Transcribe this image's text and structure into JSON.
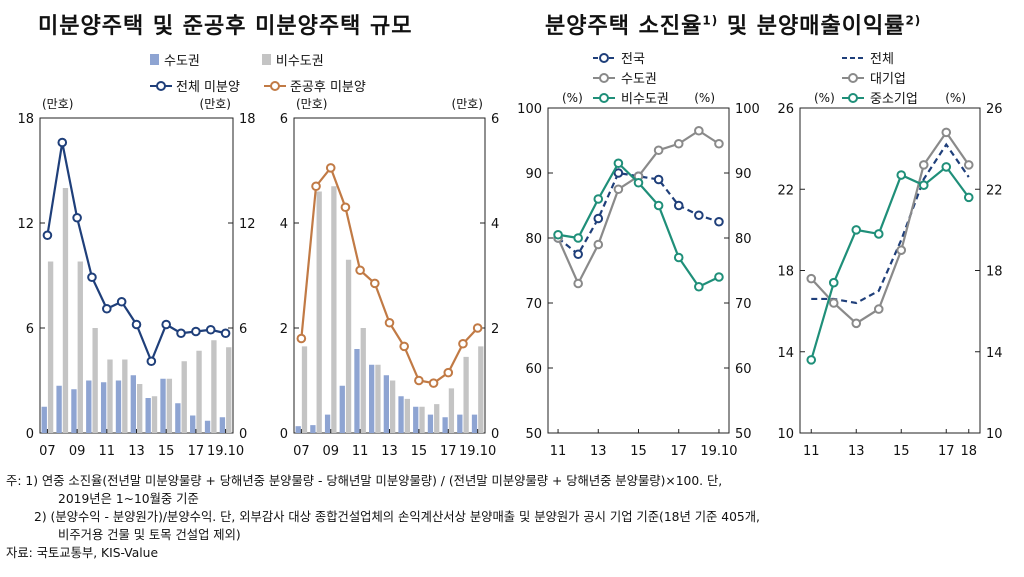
{
  "left_title": "미분양주택 및 준공후 미분양주택 규모",
  "right_title": "분양주택 소진율",
  "right_title_sup1": "1)",
  "right_title_mid": " 및 분양매출이익률",
  "right_title_sup2": "2)",
  "colors": {
    "capital": "#8ea4d2",
    "noncapital": "#c4c4c4",
    "total_line": "#1f3f7a",
    "completed_line": "#c17a45",
    "large": "#8a8a8a",
    "small": "#1f8f79"
  },
  "chart_data": [
    {
      "type": "bar+line",
      "id": "chart1",
      "unit_left": "(만호)",
      "unit_right": "(만호)",
      "ylim": [
        0,
        18
      ],
      "yticks": [
        0,
        6,
        12,
        18
      ],
      "xticks": [
        "07",
        "09",
        "11",
        "13",
        "15",
        "17",
        "19.10"
      ],
      "legend_bars": [
        "수도권",
        "비수도권"
      ],
      "legend_line": "전체 미분양",
      "n_points": 13,
      "series": [
        {
          "name": "수도권",
          "type": "bar",
          "values": [
            1.5,
            2.7,
            2.5,
            3.0,
            2.9,
            3.0,
            3.3,
            2.0,
            3.1,
            1.7,
            1.0,
            0.7,
            0.9
          ]
        },
        {
          "name": "비수도권",
          "type": "bar",
          "values": [
            9.8,
            14.0,
            9.8,
            6.0,
            4.2,
            4.2,
            2.8,
            2.1,
            3.1,
            4.1,
            4.7,
            5.3,
            4.9
          ]
        },
        {
          "name": "전체 미분양",
          "type": "line",
          "values": [
            11.3,
            16.6,
            12.3,
            8.9,
            7.1,
            7.5,
            6.2,
            4.1,
            6.2,
            5.7,
            5.8,
            5.9,
            5.7
          ]
        }
      ]
    },
    {
      "type": "bar+line",
      "id": "chart2",
      "unit_left": "(만호)",
      "unit_right": "(만호)",
      "ylim": [
        0,
        6
      ],
      "yticks": [
        0,
        2,
        4,
        6
      ],
      "xticks": [
        "07",
        "09",
        "11",
        "13",
        "15",
        "17",
        "19.10"
      ],
      "legend_line": "준공후 미분양",
      "n_points": 13,
      "series": [
        {
          "name": "수도권",
          "type": "bar",
          "values": [
            0.13,
            0.15,
            0.35,
            0.9,
            1.6,
            1.3,
            1.1,
            0.7,
            0.5,
            0.35,
            0.3,
            0.35,
            0.35
          ]
        },
        {
          "name": "비수도권",
          "type": "bar",
          "values": [
            1.65,
            4.6,
            4.7,
            3.3,
            2.0,
            1.3,
            1.0,
            0.65,
            0.5,
            0.55,
            0.85,
            1.45,
            1.65
          ]
        },
        {
          "name": "준공후 미분양",
          "type": "line",
          "values": [
            1.8,
            4.7,
            5.05,
            4.3,
            3.1,
            2.85,
            2.1,
            1.65,
            1.0,
            0.95,
            1.15,
            1.7,
            2.0
          ]
        }
      ]
    },
    {
      "type": "line",
      "id": "chart3",
      "unit_left": "(%)",
      "unit_right": "(%)",
      "ylim": [
        50,
        100
      ],
      "yticks": [
        50,
        60,
        70,
        80,
        90,
        100
      ],
      "xticks": [
        "11",
        "13",
        "15",
        "17",
        "19.10"
      ],
      "n_points": 9,
      "series": [
        {
          "name": "전국",
          "style": "dashed",
          "values": [
            80.0,
            77.5,
            83.0,
            90.0,
            89.5,
            89.0,
            85.0,
            83.5,
            82.5
          ]
        },
        {
          "name": "수도권",
          "style": "solid",
          "values": [
            80.0,
            73.0,
            79.0,
            87.5,
            89.5,
            93.5,
            94.5,
            96.5,
            94.5
          ]
        },
        {
          "name": "비수도권",
          "style": "solid",
          "values": [
            80.5,
            80.0,
            86.0,
            91.5,
            88.5,
            85.0,
            77.0,
            72.5,
            74.0
          ]
        }
      ]
    },
    {
      "type": "line",
      "id": "chart4",
      "unit_left": "(%)",
      "unit_right": "(%)",
      "ylim": [
        10,
        26
      ],
      "yticks": [
        10,
        14,
        18,
        22,
        26
      ],
      "xticks": [
        "11",
        "13",
        "15",
        "17",
        "18"
      ],
      "n_points": 8,
      "series": [
        {
          "name": "전체",
          "style": "dashed",
          "values": [
            16.6,
            16.6,
            16.4,
            17.0,
            19.5,
            22.5,
            24.2,
            22.6
          ]
        },
        {
          "name": "대기업",
          "style": "solid",
          "values": [
            17.6,
            16.4,
            15.4,
            16.1,
            19.0,
            23.2,
            24.8,
            23.2
          ]
        },
        {
          "name": "중소기업",
          "style": "solid",
          "values": [
            13.6,
            17.4,
            20.0,
            19.8,
            22.7,
            22.2,
            23.1,
            21.6
          ]
        }
      ]
    }
  ],
  "notes": {
    "line1": "주: 1) 연중 소진율(전년말 미분양물량 + 당해년중 분양물량 - 당해년말 미분양물량) / (전년말 미분양물량 + 당해년중 분양물량)×100. 단,",
    "line2": "2019년은 1~10월중 기준",
    "line3": "2) (분양수익 - 분양원가)/분양수익. 단, 외부감사 대상 종합건설업체의 손익계산서상 분양매출 및 분양원가 공시 기업 기준(18년 기준 405개,",
    "line4": "비주거용 건물 및 토목 건설업 제외)",
    "line5": "자료: 국토교통부, KIS-Value"
  }
}
